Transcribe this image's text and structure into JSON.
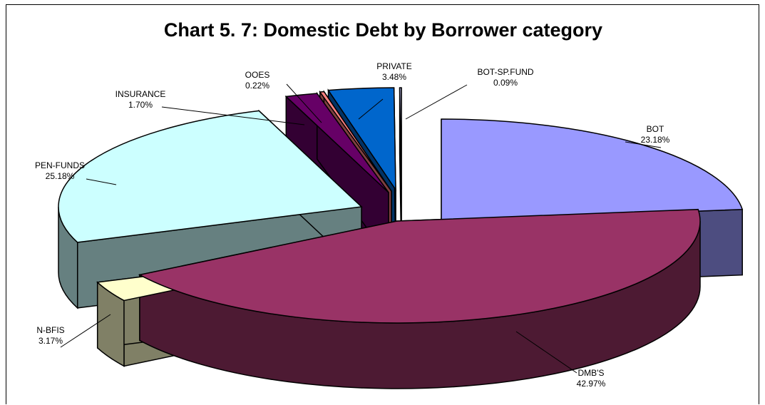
{
  "chart_data": {
    "type": "pie",
    "title": "Chart 5. 7: Domestic Debt by Borrower category",
    "slices": [
      {
        "name": "BOT",
        "value": 23.18,
        "pct": "23.18%",
        "top": "#9999ff",
        "side": "#4d4d80"
      },
      {
        "name": "DMB'S",
        "value": 42.97,
        "pct": "42.97%",
        "top": "#993366",
        "side": "#4d1a33"
      },
      {
        "name": "N-BFIS",
        "value": 3.17,
        "pct": "3.17%",
        "top": "#ffffcc",
        "side": "#808066"
      },
      {
        "name": "PEN-FUNDS",
        "value": 25.18,
        "pct": "25.18%",
        "top": "#ccffff",
        "side": "#668080"
      },
      {
        "name": "INSURANCE",
        "value": 1.7,
        "pct": "1.70%",
        "top": "#660066",
        "side": "#330033"
      },
      {
        "name": "OOES",
        "value": 0.22,
        "pct": "0.22%",
        "top": "#ff8080",
        "side": "#804040"
      },
      {
        "name": "PRIVATE",
        "value": 3.48,
        "pct": "3.48%",
        "top": "#0066cc",
        "side": "#003366"
      },
      {
        "name": "BOT-SP.FUND",
        "value": 0.09,
        "pct": "0.09%",
        "top": "#ccccff",
        "side": "#666680"
      }
    ]
  }
}
